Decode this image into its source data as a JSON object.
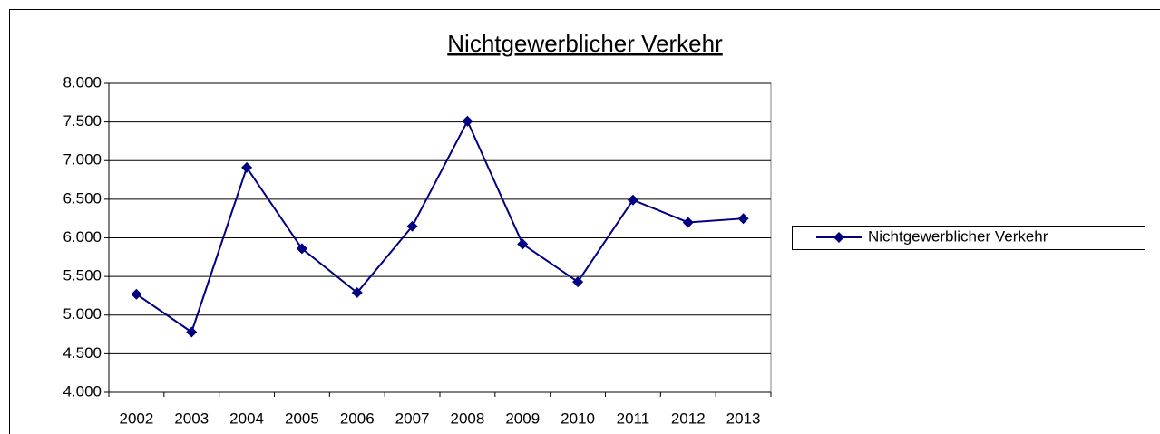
{
  "chart_data": {
    "type": "line",
    "title": "Nichtgewerblicher Verkehr",
    "categories": [
      "2002",
      "2003",
      "2004",
      "2005",
      "2006",
      "2007",
      "2008",
      "2009",
      "2010",
      "2011",
      "2012",
      "2013"
    ],
    "series": [
      {
        "name": "Nichtgewerblicher Verkehr",
        "color": "#000080",
        "values": [
          5270,
          4780,
          6910,
          5860,
          5290,
          6150,
          7510,
          5920,
          5430,
          6490,
          6200,
          6250
        ]
      }
    ],
    "ylim": [
      4000,
      8000
    ],
    "yticks": [
      {
        "value": 4000,
        "label": "4.000"
      },
      {
        "value": 4500,
        "label": "4.500"
      },
      {
        "value": 5000,
        "label": "5.000"
      },
      {
        "value": 5500,
        "label": "5.500"
      },
      {
        "value": 6000,
        "label": "6.000"
      },
      {
        "value": 6500,
        "label": "6.500"
      },
      {
        "value": 7000,
        "label": "7.000"
      },
      {
        "value": 7500,
        "label": "7.500"
      },
      {
        "value": 8000,
        "label": "8.000"
      }
    ],
    "grid": true,
    "legend": "right"
  }
}
